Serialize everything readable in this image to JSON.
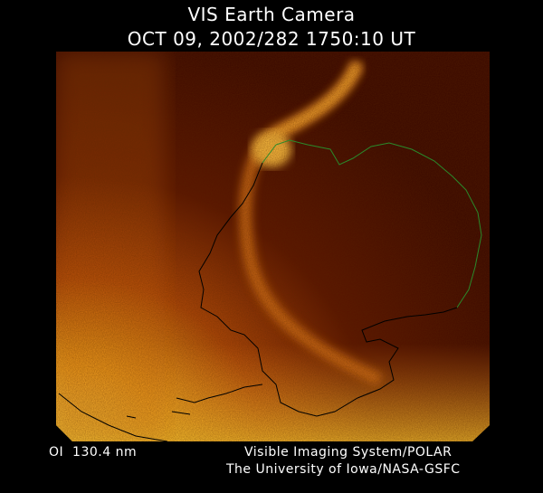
{
  "header": {
    "title": "VIS Earth Camera",
    "timestamp": "OCT 09, 2002/282 1750:10 UT"
  },
  "footer": {
    "band": "OI  130.4 nm",
    "credit_line1": "Visible Imaging System/POLAR",
    "credit_line2": "The University of Iowa/NASA-GSFC"
  },
  "colors": {
    "background": "#000000",
    "dark_sky": "#3a0800",
    "aurora": "#ffb030",
    "bright_limb": "#ffe040",
    "coastline_day": "#2a8a2a",
    "coastline_night": "#000000"
  }
}
